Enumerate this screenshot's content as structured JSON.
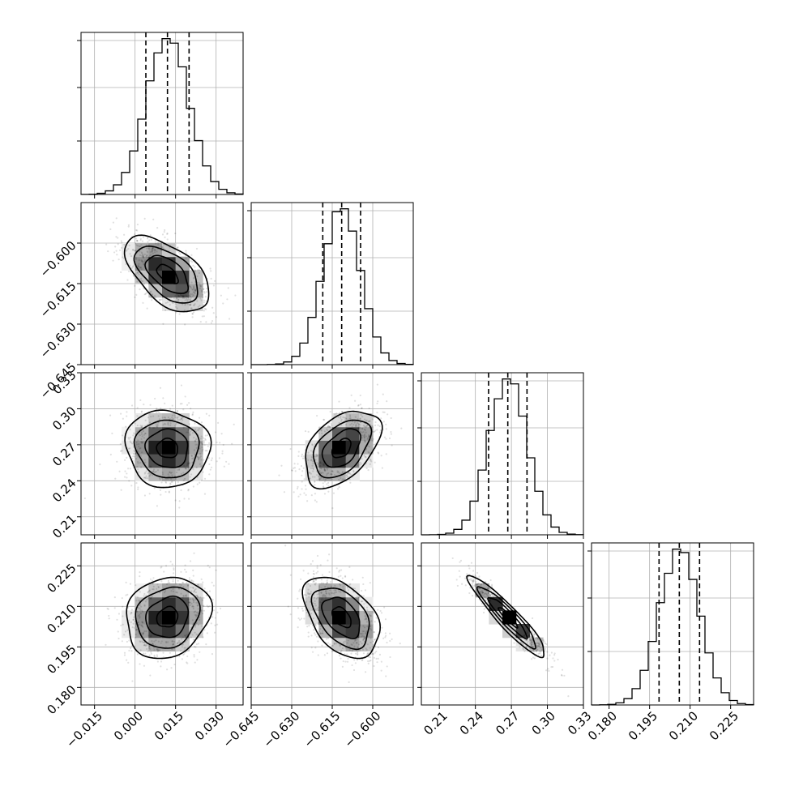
{
  "chart_data": {
    "type": "scatter",
    "kind": "corner-plot",
    "title": "",
    "grid": true,
    "quantile_lines": "dashed",
    "parameters": [
      {
        "range": [
          -0.02,
          0.04
        ],
        "ticks": [
          -0.015,
          0.0,
          0.015,
          0.03
        ],
        "tick_labels": [
          "−0.015",
          "0.000",
          "0.015",
          "0.030"
        ],
        "mean": 0.012,
        "sd": 0.0078,
        "quantiles": [
          0.004,
          0.012,
          0.02
        ]
      },
      {
        "range": [
          -0.645,
          -0.585
        ],
        "ticks": [
          -0.645,
          -0.63,
          -0.615,
          -0.6
        ],
        "tick_labels": [
          "−0.645",
          "−0.630",
          "−0.615",
          "−0.600"
        ],
        "mean": -0.6115,
        "sd": 0.007,
        "quantiles": [
          -0.6185,
          -0.6115,
          -0.6045
        ]
      },
      {
        "range": [
          0.195,
          0.33
        ],
        "ticks": [
          0.21,
          0.24,
          0.27,
          0.3,
          0.33
        ],
        "tick_labels": [
          "0.21",
          "0.24",
          "0.27",
          "0.30",
          "0.33"
        ],
        "mean": 0.267,
        "sd": 0.016,
        "quantiles": [
          0.251,
          0.267,
          0.283
        ]
      },
      {
        "range": [
          0.1735,
          0.2335
        ],
        "ticks": [
          0.18,
          0.195,
          0.21,
          0.225
        ],
        "tick_labels": [
          "0.180",
          "0.195",
          "0.210",
          "0.225"
        ],
        "mean": 0.206,
        "sd": 0.0075,
        "quantiles": [
          0.1985,
          0.206,
          0.2135
        ]
      }
    ],
    "correlations": {
      "1-0": -0.55,
      "2-0": -0.05,
      "2-1": 0.45,
      "3-0": 0.15,
      "3-1": -0.45,
      "3-2": -0.93
    }
  }
}
